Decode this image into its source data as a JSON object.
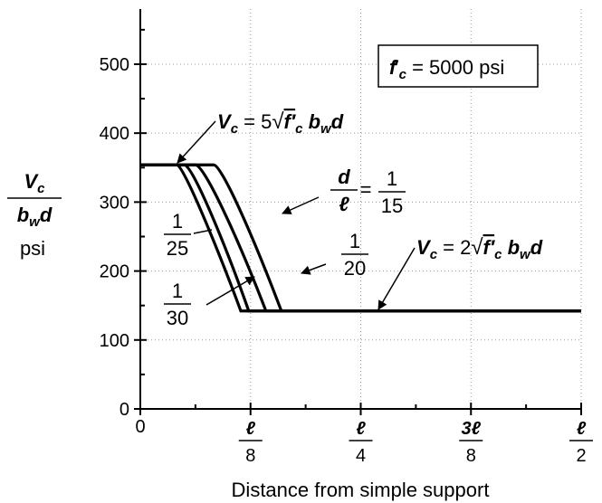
{
  "chart_data": {
    "type": "line",
    "xlabel": "Distance from simple support",
    "x_ticks": [
      {
        "value": 0,
        "label": "0"
      },
      {
        "value": 0.125,
        "num": "ℓ",
        "den": "8"
      },
      {
        "value": 0.25,
        "num": "ℓ",
        "den": "4"
      },
      {
        "value": 0.375,
        "num": "3ℓ",
        "den": "8"
      },
      {
        "value": 0.5,
        "num": "ℓ",
        "den": "2"
      }
    ],
    "xlim": [
      0,
      0.5
    ],
    "ylim": [
      0,
      580
    ],
    "y_ticks": [
      0,
      100,
      200,
      300,
      400,
      500
    ],
    "ylabel": {
      "num": "V",
      "num_sub": "c",
      "den": "b",
      "den_sub": "w",
      "den_tail": "d",
      "unit": "psi"
    },
    "box_label": {
      "var": "f",
      "prime": "′",
      "sub": "c",
      "rest": " = 5000 psi"
    },
    "eq_upper": {
      "lead": "V",
      "sub": "c",
      "text": " = 5",
      "root": "f′",
      "root_sub": "c",
      "tail": "b",
      "tail_sub": "w",
      "tail2": "d"
    },
    "eq_lower": {
      "lead": "V",
      "sub": "c",
      "text": " = 2",
      "root": "f′",
      "root_sub": "c",
      "tail": "b",
      "tail_sub": "w",
      "tail2": "d"
    },
    "curve_labels": [
      {
        "key": "d/ℓ",
        "num": "d",
        "den": "ℓ",
        "eq": "=",
        "fnum": "1",
        "fden": "15"
      },
      {
        "num": "1",
        "den": "20"
      },
      {
        "num": "1",
        "den": "25"
      },
      {
        "num": "1",
        "den": "30"
      }
    ],
    "series": [
      {
        "x": [
          0,
          0.0833,
          0.0917,
          0.125,
          0.16,
          0.5
        ],
        "y": [
          354,
          354,
          354,
          260,
          142,
          142
        ]
      },
      {
        "x": [
          0,
          0.0625,
          0.0725,
          0.11,
          0.1425,
          0.5
        ],
        "y": [
          354,
          354,
          354,
          250,
          142,
          142
        ]
      },
      {
        "x": [
          0,
          0.05,
          0.059,
          0.096,
          0.123,
          0.5
        ],
        "y": [
          354,
          354,
          354,
          240,
          142,
          142
        ]
      },
      {
        "x": [
          0,
          0.0417,
          0.049,
          0.09,
          0.114,
          0.5
        ],
        "y": [
          354,
          354,
          354,
          225,
          142,
          142
        ]
      }
    ],
    "grid": true
  }
}
